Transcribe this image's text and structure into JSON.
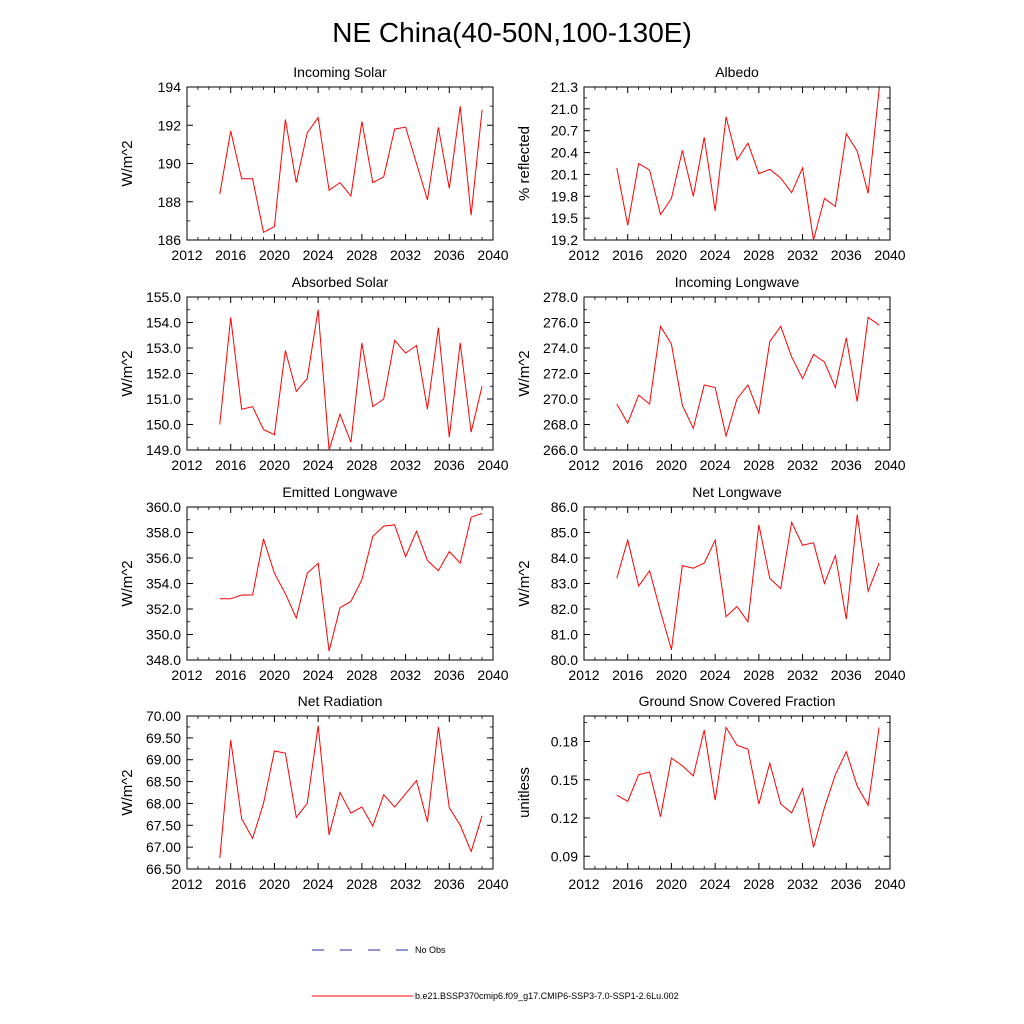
{
  "figure_title": "NE China(40-50N,100-130E)",
  "legend": {
    "obs_label": "No Obs",
    "obs_color": "#2a2aa8",
    "model_label": "b.e21.BSSP370cmip6.f09_g17.CMIP6-SSP3-7.0-SSP1-2.6Lu.002",
    "model_color": "#ff0000"
  },
  "chart_data": [
    {
      "type": "line",
      "title": "Incoming Solar",
      "ylabel": "W/m^2",
      "xlim": [
        2012,
        2040
      ],
      "ylim": [
        186,
        194
      ],
      "xticks": [
        "2012",
        "2016",
        "2020",
        "2024",
        "2028",
        "2032",
        "2036",
        "2040"
      ],
      "yticks": [
        "186",
        "188",
        "190",
        "192",
        "194"
      ],
      "x": [
        2015,
        2016,
        2017,
        2018,
        2019,
        2020,
        2021,
        2022,
        2023,
        2024,
        2025,
        2026,
        2027,
        2028,
        2029,
        2030,
        2031,
        2032,
        2033,
        2034,
        2035,
        2036,
        2037,
        2038,
        2039
      ],
      "series": [
        {
          "values": [
            188.4,
            191.7,
            189.2,
            189.2,
            186.4,
            186.7,
            192.3,
            189.0,
            191.6,
            192.4,
            188.6,
            189.0,
            188.3,
            192.2,
            189.0,
            189.3,
            191.8,
            191.9,
            190.0,
            188.1,
            191.9,
            188.7,
            193.0,
            187.3,
            192.8
          ]
        }
      ]
    },
    {
      "type": "line",
      "title": "Albedo",
      "ylabel": "% reflected",
      "xlim": [
        2012,
        2040
      ],
      "ylim": [
        19.2,
        21.3
      ],
      "xticks": [
        "2012",
        "2016",
        "2020",
        "2024",
        "2028",
        "2032",
        "2036",
        "2040"
      ],
      "yticks": [
        "19.2",
        "19.5",
        "19.8",
        "20.1",
        "20.4",
        "20.7",
        "21.0",
        "21.3"
      ],
      "x": [
        2015,
        2016,
        2017,
        2018,
        2019,
        2020,
        2021,
        2022,
        2023,
        2024,
        2025,
        2026,
        2027,
        2028,
        2029,
        2030,
        2031,
        2032,
        2033,
        2034,
        2035,
        2036,
        2037,
        2038,
        2039
      ],
      "series": [
        {
          "values": [
            20.19,
            19.4,
            20.25,
            20.16,
            19.55,
            19.77,
            20.43,
            19.8,
            20.61,
            19.6,
            20.89,
            20.3,
            20.53,
            20.11,
            20.17,
            20.05,
            19.85,
            20.19,
            19.2,
            19.77,
            19.66,
            20.66,
            20.42,
            19.84,
            21.26
          ]
        }
      ]
    },
    {
      "type": "line",
      "title": "Absorbed Solar",
      "ylabel": "W/m^2",
      "xlim": [
        2012,
        2040
      ],
      "ylim": [
        149.0,
        155.0
      ],
      "xticks": [
        "2012",
        "2016",
        "2020",
        "2024",
        "2028",
        "2032",
        "2036",
        "2040"
      ],
      "yticks": [
        "149.0",
        "150.0",
        "151.0",
        "152.0",
        "153.0",
        "154.0",
        "155.0"
      ],
      "x": [
        2015,
        2016,
        2017,
        2018,
        2019,
        2020,
        2021,
        2022,
        2023,
        2024,
        2025,
        2026,
        2027,
        2028,
        2029,
        2030,
        2031,
        2032,
        2033,
        2034,
        2035,
        2036,
        2037,
        2038,
        2039
      ],
      "series": [
        {
          "values": [
            150.0,
            154.2,
            150.6,
            150.7,
            149.8,
            149.6,
            152.9,
            151.3,
            151.8,
            154.5,
            149.0,
            150.4,
            149.3,
            153.2,
            150.7,
            151.0,
            153.3,
            152.8,
            153.1,
            150.6,
            153.8,
            149.5,
            153.2,
            149.7,
            151.5
          ]
        }
      ]
    },
    {
      "type": "line",
      "title": "Incoming Longwave",
      "ylabel": "W/m^2",
      "xlim": [
        2012,
        2040
      ],
      "ylim": [
        266.0,
        278.0
      ],
      "xticks": [
        "2012",
        "2016",
        "2020",
        "2024",
        "2028",
        "2032",
        "2036",
        "2040"
      ],
      "yticks": [
        "266.0",
        "268.0",
        "270.0",
        "272.0",
        "274.0",
        "276.0",
        "278.0"
      ],
      "x": [
        2015,
        2016,
        2017,
        2018,
        2019,
        2020,
        2021,
        2022,
        2023,
        2024,
        2025,
        2026,
        2027,
        2028,
        2029,
        2030,
        2031,
        2032,
        2033,
        2034,
        2035,
        2036,
        2037,
        2038,
        2039
      ],
      "series": [
        {
          "values": [
            269.6,
            268.1,
            270.3,
            269.6,
            275.7,
            274.3,
            269.5,
            267.7,
            271.1,
            270.9,
            267.1,
            270.0,
            271.1,
            268.9,
            274.5,
            275.7,
            273.3,
            271.6,
            273.5,
            272.9,
            270.9,
            274.8,
            269.8,
            276.4,
            275.8
          ]
        }
      ]
    },
    {
      "type": "line",
      "title": "Emitted Longwave",
      "ylabel": "W/m^2",
      "xlim": [
        2012,
        2040
      ],
      "ylim": [
        348.0,
        360.0
      ],
      "xticks": [
        "2012",
        "2016",
        "2020",
        "2024",
        "2028",
        "2032",
        "2036",
        "2040"
      ],
      "yticks": [
        "348.0",
        "350.0",
        "352.0",
        "354.0",
        "356.0",
        "358.0",
        "360.0"
      ],
      "x": [
        2015,
        2016,
        2017,
        2018,
        2019,
        2020,
        2021,
        2022,
        2023,
        2024,
        2025,
        2026,
        2027,
        2028,
        2029,
        2030,
        2031,
        2032,
        2033,
        2034,
        2035,
        2036,
        2037,
        2038,
        2039
      ],
      "series": [
        {
          "values": [
            352.8,
            352.8,
            353.1,
            353.1,
            357.5,
            354.8,
            353.2,
            351.3,
            354.8,
            355.6,
            348.7,
            352.1,
            352.6,
            354.3,
            357.7,
            358.5,
            358.6,
            356.1,
            358.1,
            355.8,
            355.0,
            356.5,
            355.6,
            359.2,
            359.5
          ]
        }
      ]
    },
    {
      "type": "line",
      "title": "Net Longwave",
      "ylabel": "W/m^2",
      "xlim": [
        2012,
        2040
      ],
      "ylim": [
        80.0,
        86.0
      ],
      "xticks": [
        "2012",
        "2016",
        "2020",
        "2024",
        "2028",
        "2032",
        "2036",
        "2040"
      ],
      "yticks": [
        "80.0",
        "81.0",
        "82.0",
        "83.0",
        "84.0",
        "85.0",
        "86.0"
      ],
      "x": [
        2015,
        2016,
        2017,
        2018,
        2019,
        2020,
        2021,
        2022,
        2023,
        2024,
        2025,
        2026,
        2027,
        2028,
        2029,
        2030,
        2031,
        2032,
        2033,
        2034,
        2035,
        2036,
        2037,
        2038,
        2039
      ],
      "series": [
        {
          "values": [
            83.2,
            84.7,
            82.9,
            83.5,
            81.9,
            80.4,
            83.7,
            83.6,
            83.8,
            84.7,
            81.7,
            82.1,
            81.5,
            85.3,
            83.2,
            82.8,
            85.4,
            84.5,
            84.6,
            83.0,
            84.1,
            81.6,
            85.7,
            82.7,
            83.8
          ]
        }
      ]
    },
    {
      "type": "line",
      "title": "Net Radiation",
      "ylabel": "W/m^2",
      "xlim": [
        2012,
        2040
      ],
      "ylim": [
        66.5,
        70.0
      ],
      "xticks": [
        "2012",
        "2016",
        "2020",
        "2024",
        "2028",
        "2032",
        "2036",
        "2040"
      ],
      "yticks": [
        "66.50",
        "67.00",
        "67.50",
        "68.00",
        "68.50",
        "69.00",
        "69.50",
        "70.00"
      ],
      "x": [
        2015,
        2016,
        2017,
        2018,
        2019,
        2020,
        2021,
        2022,
        2023,
        2024,
        2025,
        2026,
        2027,
        2028,
        2029,
        2030,
        2031,
        2032,
        2033,
        2034,
        2035,
        2036,
        2037,
        2038,
        2039
      ],
      "series": [
        {
          "values": [
            66.75,
            69.45,
            67.65,
            67.2,
            68.0,
            69.2,
            69.15,
            67.68,
            68.0,
            69.78,
            67.28,
            68.25,
            67.78,
            67.92,
            67.48,
            68.2,
            67.92,
            68.22,
            68.52,
            67.58,
            69.75,
            67.9,
            67.5,
            66.9,
            67.72
          ]
        }
      ]
    },
    {
      "type": "line",
      "title": "Ground Snow Covered Fraction",
      "ylabel": "unitless",
      "xlim": [
        2012,
        2040
      ],
      "ylim": [
        0.08,
        0.2
      ],
      "xticks": [
        "2012",
        "2016",
        "2020",
        "2024",
        "2028",
        "2032",
        "2036",
        "2040"
      ],
      "yticks": [
        "0.09",
        "0.12",
        "0.15",
        "0.18"
      ],
      "x": [
        2015,
        2016,
        2017,
        2018,
        2019,
        2020,
        2021,
        2022,
        2023,
        2024,
        2025,
        2026,
        2027,
        2028,
        2029,
        2030,
        2031,
        2032,
        2033,
        2034,
        2035,
        2036,
        2037,
        2038,
        2039
      ],
      "series": [
        {
          "values": [
            0.138,
            0.133,
            0.154,
            0.156,
            0.121,
            0.167,
            0.161,
            0.153,
            0.189,
            0.134,
            0.191,
            0.177,
            0.174,
            0.131,
            0.163,
            0.131,
            0.124,
            0.143,
            0.097,
            0.128,
            0.154,
            0.172,
            0.145,
            0.13,
            0.191
          ]
        }
      ]
    }
  ]
}
